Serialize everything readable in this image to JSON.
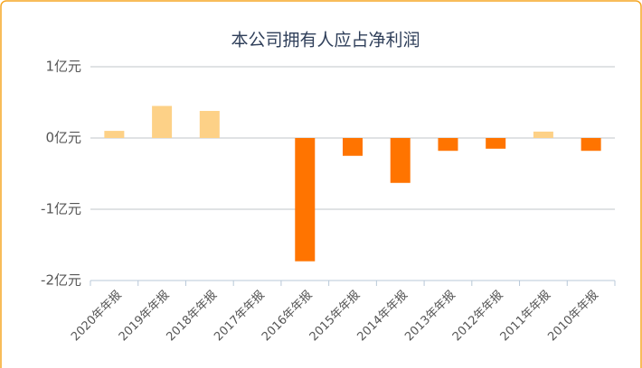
{
  "chart_data": {
    "type": "bar",
    "title": "本公司拥有人应占净利润",
    "categories": [
      "2020年年报",
      "2019年年报",
      "2018年年报",
      "2017年年报",
      "2016年年报",
      "2015年年报",
      "2014年年报",
      "2013年年报",
      "2012年年报",
      "2011年年报",
      "2010年年报"
    ],
    "values": [
      0.1,
      0.45,
      0.38,
      0,
      -1.73,
      -0.25,
      -0.63,
      -0.18,
      -0.15,
      0.09,
      -0.18
    ],
    "positive_color": "#fdd187",
    "negative_color": "#ff7400",
    "ylim": [
      -2,
      1
    ],
    "yticks": [
      {
        "value": -2,
        "label": "-2亿元"
      },
      {
        "value": -1,
        "label": "-1亿元"
      },
      {
        "value": 0,
        "label": "0亿元"
      },
      {
        "value": 1,
        "label": "1亿元"
      }
    ],
    "grid": true
  }
}
